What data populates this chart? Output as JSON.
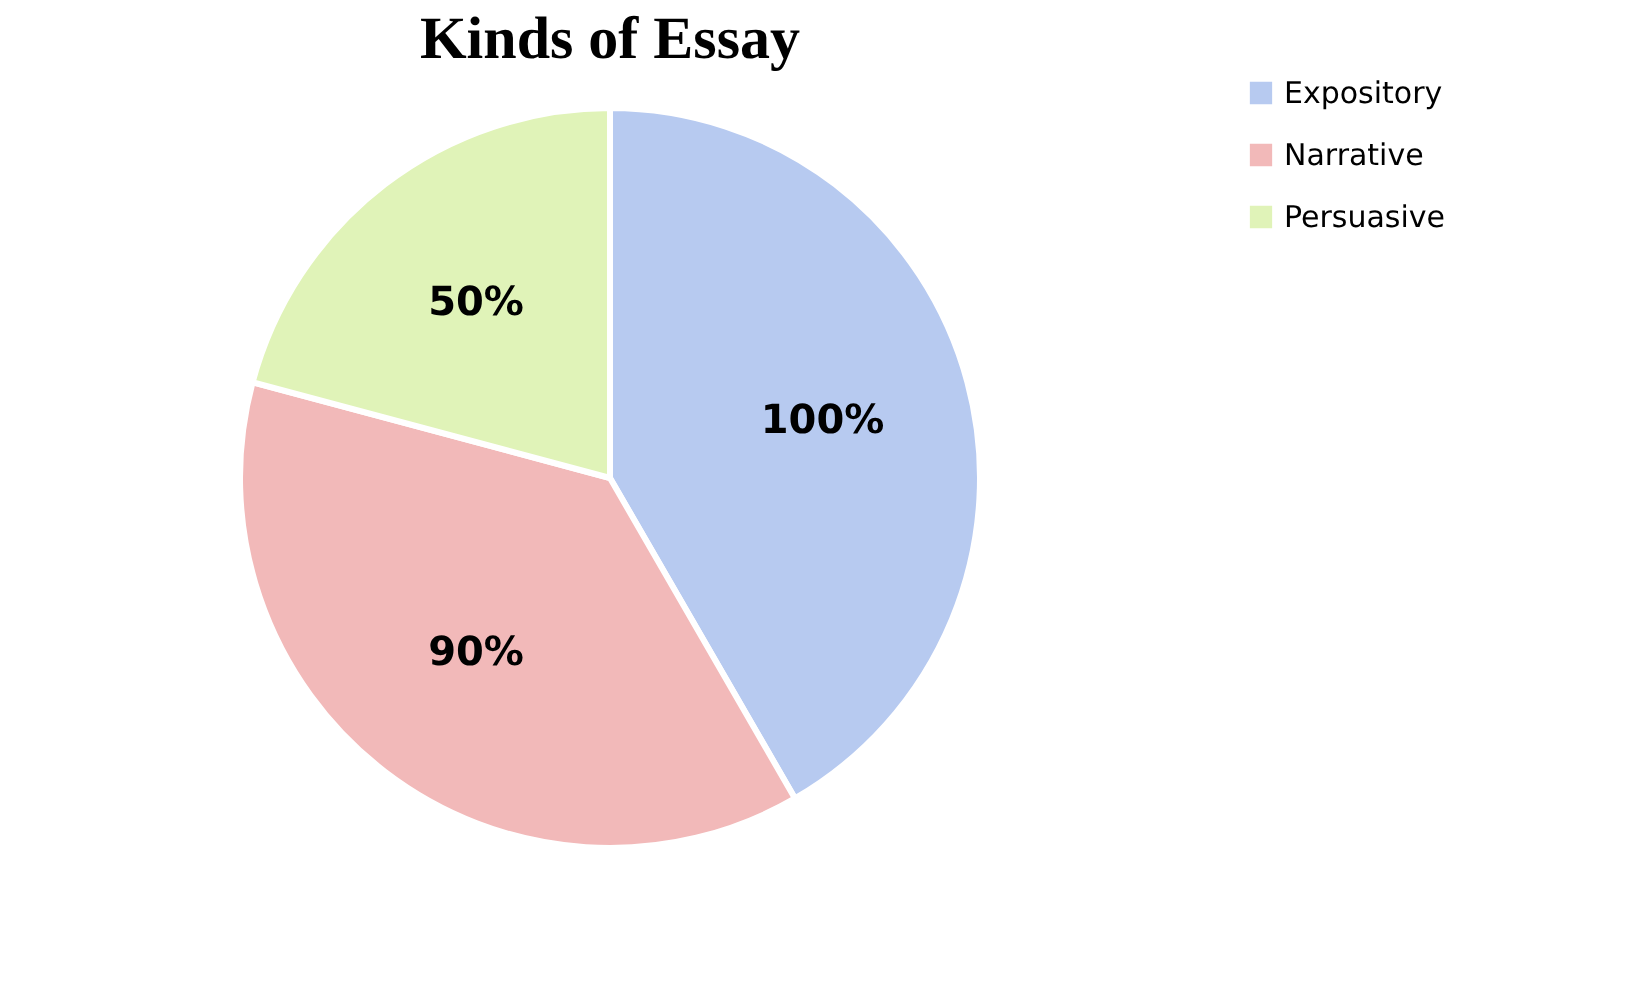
{
  "chart_data": {
    "type": "pie",
    "title": "Kinds of Essay",
    "categories": [
      "Expository",
      "Narrative",
      "Persuasive"
    ],
    "values": [
      100,
      90,
      50
    ],
    "value_labels": [
      "100%",
      "90%",
      "50%"
    ],
    "colors": [
      "#b7caf0",
      "#f2b9b9",
      "#e0f3b8"
    ],
    "legend": "right"
  }
}
